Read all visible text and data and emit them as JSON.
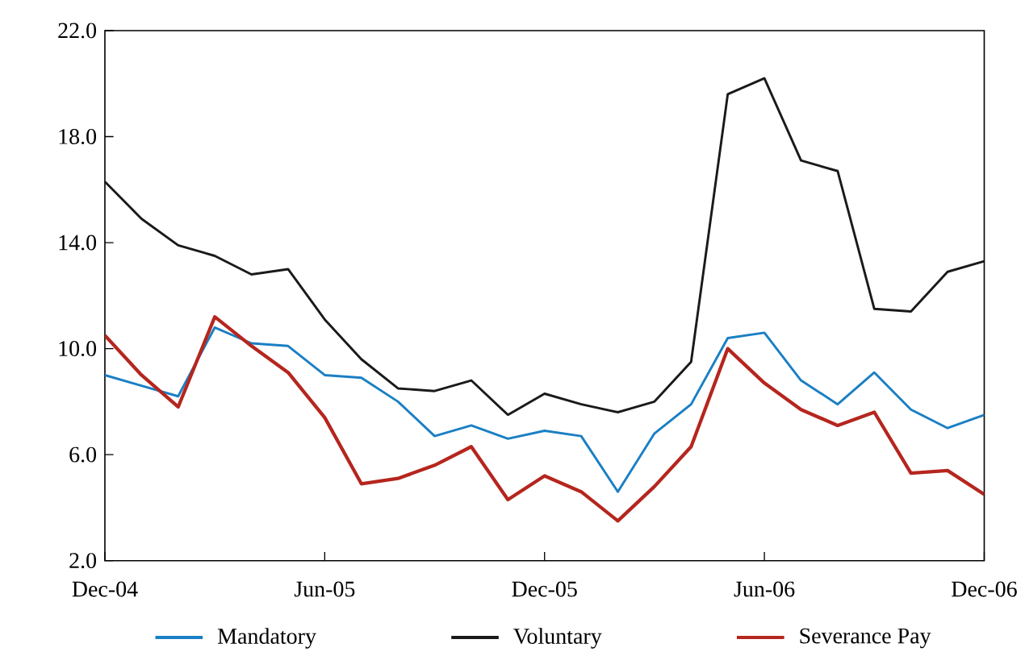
{
  "chart_data": {
    "type": "line",
    "categories": [
      "Dec-04",
      null,
      null,
      null,
      null,
      null,
      "Jun-05",
      null,
      null,
      null,
      null,
      null,
      "Dec-05",
      null,
      null,
      null,
      null,
      null,
      "Jun-06",
      null,
      null,
      null,
      null,
      null,
      "Dec-06"
    ],
    "series": [
      {
        "name": "Mandatory",
        "color": "#1a7fc4",
        "values": [
          9.0,
          8.6,
          8.2,
          10.8,
          10.2,
          10.1,
          9.0,
          8.9,
          8.0,
          6.7,
          7.1,
          6.6,
          6.9,
          6.7,
          4.6,
          6.8,
          7.9,
          10.4,
          10.6,
          8.8,
          7.9,
          9.1,
          7.7,
          7.0,
          7.5
        ]
      },
      {
        "name": "Voluntary",
        "color": "#1a1a1a",
        "values": [
          16.3,
          14.9,
          13.9,
          13.5,
          12.8,
          13.0,
          11.1,
          9.6,
          8.5,
          8.4,
          8.8,
          7.5,
          8.3,
          7.9,
          7.6,
          8.0,
          9.5,
          19.6,
          20.2,
          17.1,
          16.7,
          11.5,
          11.4,
          12.9,
          13.3
        ]
      },
      {
        "name": "Severance Pay",
        "color": "#b5261e",
        "values": [
          10.5,
          9.0,
          7.8,
          11.2,
          10.1,
          9.1,
          7.4,
          4.9,
          5.1,
          5.6,
          6.3,
          4.3,
          5.2,
          4.6,
          3.5,
          4.8,
          6.3,
          10.0,
          8.7,
          7.7,
          7.1,
          7.6,
          5.3,
          5.4,
          4.5
        ]
      }
    ],
    "ylim": [
      2,
      22
    ],
    "yticks": [
      {
        "value": 2,
        "label": "2.0"
      },
      {
        "value": 6,
        "label": "6.0"
      },
      {
        "value": 10,
        "label": "10.0"
      },
      {
        "value": 14,
        "label": "14.0"
      },
      {
        "value": 18,
        "label": "18.0"
      },
      {
        "value": 22,
        "label": "22.0"
      }
    ],
    "grid": false,
    "legend": "bottom",
    "line_style": "solid",
    "marker": "none"
  }
}
